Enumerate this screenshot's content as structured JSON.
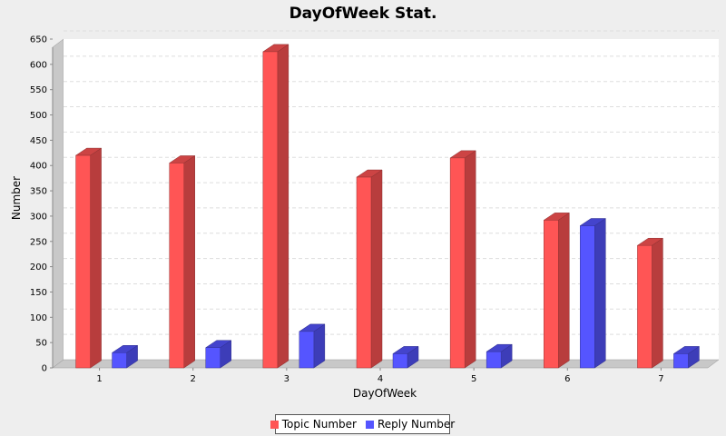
{
  "chart_data": {
    "type": "bar",
    "title": "DayOfWeek Stat.",
    "xlabel": "DayOfWeek",
    "ylabel": "Number",
    "categories": [
      "1",
      "2",
      "3",
      "4",
      "5",
      "6",
      "7"
    ],
    "series": [
      {
        "name": "Topic Number",
        "color": "#ff5555",
        "values": [
          420,
          405,
          625,
          377,
          415,
          292,
          242
        ]
      },
      {
        "name": "Reply Number",
        "color": "#5555ff",
        "values": [
          30,
          40,
          72,
          28,
          32,
          281,
          28
        ]
      }
    ],
    "ylim": [
      0,
      650
    ],
    "yticks": [
      0,
      50,
      100,
      150,
      200,
      250,
      300,
      350,
      400,
      450,
      500,
      550,
      600,
      650
    ],
    "grid": true,
    "legend_position": "bottom",
    "style": "3d"
  }
}
